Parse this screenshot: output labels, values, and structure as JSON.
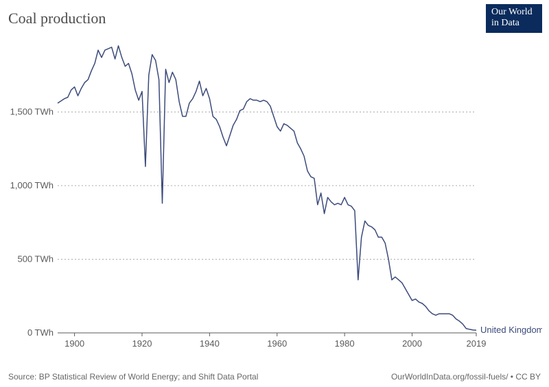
{
  "title": "Coal production",
  "logo": {
    "line1": "Our World",
    "line2": "in Data"
  },
  "footer_left": "Source: BP Statistical Review of World Energy; and Shift Data Portal",
  "footer_right": "OurWorldInData.org/fossil-fuels/ • CC BY",
  "chart": {
    "type": "line",
    "series_label": "United Kingdom",
    "line_color": "#3b4a7a",
    "line_width": 1.5,
    "background_color": "#ffffff",
    "grid_color": "#aaaaaa",
    "axis_color": "#5a5a5a",
    "tick_font_size": 13,
    "tick_color": "#5a5a5a",
    "label_font_size": 13,
    "xlim": [
      1895,
      2019
    ],
    "ylim": [
      0,
      2000
    ],
    "xticks": [
      1900,
      1920,
      1940,
      1960,
      1980,
      2000,
      2019
    ],
    "yticks": [
      {
        "v": 0,
        "label": "0 TWh"
      },
      {
        "v": 500,
        "label": "500 TWh"
      },
      {
        "v": 1000,
        "label": "1,000 TWh"
      },
      {
        "v": 1500,
        "label": "1,500 TWh"
      }
    ],
    "data": [
      [
        1895,
        1560
      ],
      [
        1896,
        1575
      ],
      [
        1897,
        1590
      ],
      [
        1898,
        1600
      ],
      [
        1899,
        1650
      ],
      [
        1900,
        1670
      ],
      [
        1901,
        1610
      ],
      [
        1902,
        1660
      ],
      [
        1903,
        1700
      ],
      [
        1904,
        1720
      ],
      [
        1905,
        1780
      ],
      [
        1906,
        1830
      ],
      [
        1907,
        1920
      ],
      [
        1908,
        1870
      ],
      [
        1909,
        1920
      ],
      [
        1910,
        1930
      ],
      [
        1911,
        1940
      ],
      [
        1912,
        1860
      ],
      [
        1913,
        1950
      ],
      [
        1914,
        1870
      ],
      [
        1915,
        1810
      ],
      [
        1916,
        1830
      ],
      [
        1917,
        1760
      ],
      [
        1918,
        1650
      ],
      [
        1919,
        1580
      ],
      [
        1920,
        1640
      ],
      [
        1921,
        1130
      ],
      [
        1922,
        1750
      ],
      [
        1923,
        1890
      ],
      [
        1924,
        1850
      ],
      [
        1925,
        1720
      ],
      [
        1926,
        880
      ],
      [
        1927,
        1790
      ],
      [
        1928,
        1700
      ],
      [
        1929,
        1770
      ],
      [
        1930,
        1720
      ],
      [
        1931,
        1570
      ],
      [
        1932,
        1470
      ],
      [
        1933,
        1470
      ],
      [
        1934,
        1560
      ],
      [
        1935,
        1590
      ],
      [
        1936,
        1640
      ],
      [
        1937,
        1710
      ],
      [
        1938,
        1610
      ],
      [
        1939,
        1660
      ],
      [
        1940,
        1590
      ],
      [
        1941,
        1470
      ],
      [
        1942,
        1450
      ],
      [
        1943,
        1400
      ],
      [
        1944,
        1330
      ],
      [
        1945,
        1270
      ],
      [
        1946,
        1340
      ],
      [
        1947,
        1410
      ],
      [
        1948,
        1450
      ],
      [
        1949,
        1510
      ],
      [
        1950,
        1520
      ],
      [
        1951,
        1570
      ],
      [
        1952,
        1590
      ],
      [
        1953,
        1580
      ],
      [
        1954,
        1580
      ],
      [
        1955,
        1570
      ],
      [
        1956,
        1580
      ],
      [
        1957,
        1570
      ],
      [
        1958,
        1540
      ],
      [
        1959,
        1470
      ],
      [
        1960,
        1400
      ],
      [
        1961,
        1370
      ],
      [
        1962,
        1420
      ],
      [
        1963,
        1410
      ],
      [
        1964,
        1390
      ],
      [
        1965,
        1370
      ],
      [
        1966,
        1290
      ],
      [
        1967,
        1250
      ],
      [
        1968,
        1200
      ],
      [
        1969,
        1100
      ],
      [
        1970,
        1060
      ],
      [
        1971,
        1050
      ],
      [
        1972,
        870
      ],
      [
        1973,
        950
      ],
      [
        1974,
        810
      ],
      [
        1975,
        920
      ],
      [
        1976,
        890
      ],
      [
        1977,
        870
      ],
      [
        1978,
        880
      ],
      [
        1979,
        870
      ],
      [
        1980,
        920
      ],
      [
        1981,
        870
      ],
      [
        1982,
        860
      ],
      [
        1983,
        830
      ],
      [
        1984,
        360
      ],
      [
        1985,
        650
      ],
      [
        1986,
        760
      ],
      [
        1987,
        730
      ],
      [
        1988,
        720
      ],
      [
        1989,
        700
      ],
      [
        1990,
        650
      ],
      [
        1991,
        650
      ],
      [
        1992,
        610
      ],
      [
        1993,
        500
      ],
      [
        1994,
        360
      ],
      [
        1995,
        380
      ],
      [
        1996,
        360
      ],
      [
        1997,
        340
      ],
      [
        1998,
        300
      ],
      [
        1999,
        260
      ],
      [
        2000,
        220
      ],
      [
        2001,
        230
      ],
      [
        2002,
        210
      ],
      [
        2003,
        200
      ],
      [
        2004,
        180
      ],
      [
        2005,
        150
      ],
      [
        2006,
        130
      ],
      [
        2007,
        120
      ],
      [
        2008,
        130
      ],
      [
        2009,
        130
      ],
      [
        2010,
        130
      ],
      [
        2011,
        130
      ],
      [
        2012,
        120
      ],
      [
        2013,
        95
      ],
      [
        2014,
        80
      ],
      [
        2015,
        60
      ],
      [
        2016,
        30
      ],
      [
        2017,
        24
      ],
      [
        2018,
        20
      ],
      [
        2019,
        18
      ]
    ]
  }
}
